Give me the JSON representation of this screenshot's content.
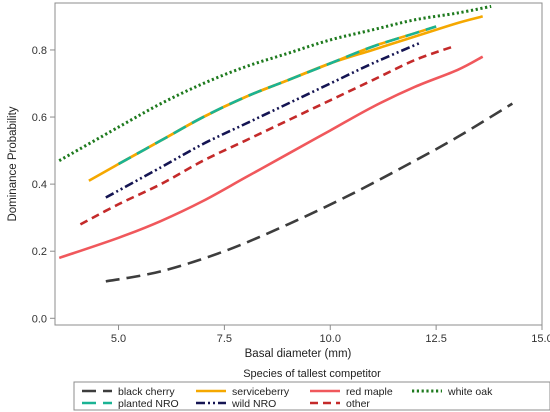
{
  "chart_data": {
    "type": "line",
    "xlabel": "Basal diameter (mm)",
    "ylabel": "Dominance Probability",
    "xlim": [
      3.5,
      15.0
    ],
    "ylim": [
      -0.02,
      0.94
    ],
    "x_ticks": [
      "5.0",
      "7.5",
      "10.0",
      "12.5",
      "15.0"
    ],
    "y_ticks": [
      "0.0",
      "0.2",
      "0.4",
      "0.6",
      "0.8"
    ],
    "grid": false,
    "legend": {
      "title": "Species of tallest competitor",
      "placement": "bottom"
    },
    "series": [
      {
        "name": "black cherry",
        "color": "#3d3d3d",
        "dash": "long-dash",
        "x": [
          4.7,
          6.0,
          7.5,
          9.0,
          10.5,
          12.0,
          13.0,
          14.3
        ],
        "y": [
          0.11,
          0.14,
          0.2,
          0.28,
          0.37,
          0.47,
          0.54,
          0.64
        ]
      },
      {
        "name": "serviceberry",
        "color": "#f5a800",
        "dash": "solid",
        "x": [
          4.3,
          5.0,
          6.0,
          7.0,
          8.0,
          9.0,
          10.0,
          11.0,
          12.0,
          13.0,
          13.6
        ],
        "y": [
          0.41,
          0.46,
          0.53,
          0.6,
          0.66,
          0.71,
          0.76,
          0.8,
          0.84,
          0.88,
          0.9
        ]
      },
      {
        "name": "red maple",
        "color": "#f0585c",
        "dash": "solid",
        "x": [
          3.6,
          5.0,
          6.0,
          7.0,
          8.0,
          9.0,
          10.0,
          11.0,
          12.0,
          13.0,
          13.6
        ],
        "y": [
          0.18,
          0.24,
          0.29,
          0.35,
          0.42,
          0.49,
          0.56,
          0.63,
          0.69,
          0.74,
          0.78
        ]
      },
      {
        "name": "white oak",
        "color": "#1e7a1e",
        "dash": "dotted",
        "x": [
          3.6,
          5.0,
          6.0,
          7.0,
          8.0,
          9.0,
          10.0,
          11.0,
          12.0,
          13.0,
          13.8
        ],
        "y": [
          0.47,
          0.57,
          0.64,
          0.7,
          0.75,
          0.79,
          0.83,
          0.86,
          0.89,
          0.91,
          0.93
        ]
      },
      {
        "name": "planted NRO",
        "color": "#1ab394",
        "dash": "long-dash",
        "x": [
          5.0,
          6.0,
          7.0,
          8.0,
          9.0,
          10.0,
          11.0,
          12.0,
          12.5
        ],
        "y": [
          0.46,
          0.53,
          0.6,
          0.66,
          0.71,
          0.76,
          0.81,
          0.85,
          0.87
        ]
      },
      {
        "name": "wild NRO",
        "color": "#151553",
        "dash": "dash-dot-dot",
        "x": [
          4.7,
          6.0,
          7.0,
          8.0,
          9.0,
          10.0,
          11.0,
          12.1
        ],
        "y": [
          0.36,
          0.45,
          0.52,
          0.58,
          0.64,
          0.7,
          0.76,
          0.82
        ]
      },
      {
        "name": "other",
        "color": "#c42a2a",
        "dash": "short-dash",
        "x": [
          4.1,
          5.0,
          6.0,
          7.0,
          8.0,
          9.0,
          10.0,
          11.0,
          12.0,
          12.9
        ],
        "y": [
          0.28,
          0.34,
          0.4,
          0.47,
          0.53,
          0.59,
          0.65,
          0.71,
          0.77,
          0.81
        ]
      }
    ]
  }
}
